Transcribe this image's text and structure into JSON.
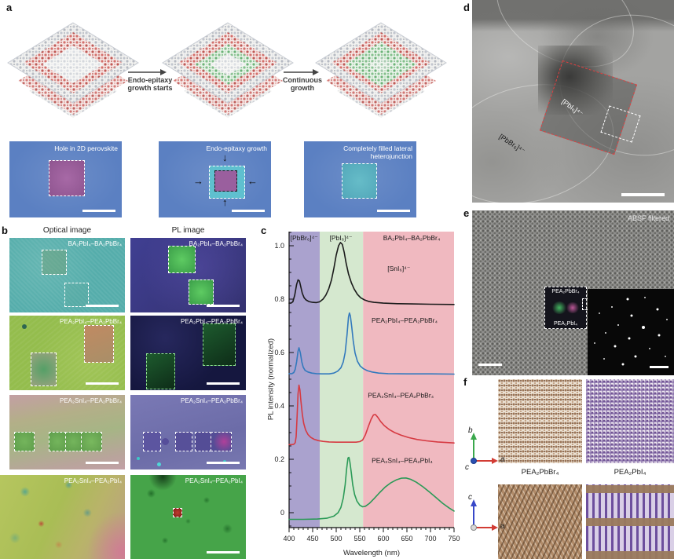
{
  "figure": {
    "panels": {
      "a": "a",
      "b": "b",
      "c": "c",
      "d": "d",
      "e": "e",
      "f": "f"
    }
  },
  "panel_a": {
    "step1_label": "Endo-epitaxy growth starts",
    "step2_label": "Continuous growth",
    "micrographs": [
      {
        "caption": "Hole in 2D perovskite"
      },
      {
        "caption": "Endo-epitaxy growth"
      },
      {
        "caption": "Completely filled lateral heterojunction"
      }
    ]
  },
  "panel_b": {
    "col_headers": [
      "Optical image",
      "PL image"
    ],
    "rows": [
      {
        "label": "BA₂PbI₄–BA₂PbBr₄"
      },
      {
        "label": "PEA₂PbI₄–PEA₂PbBr₄"
      },
      {
        "label": "PEA₂SnI₄–PEA₂PbBr₄"
      },
      {
        "label": "PEA₂SnI₄–PEA₂PbI₄"
      }
    ]
  },
  "chart_data": {
    "type": "line",
    "xlabel": "Wavelength (nm)",
    "ylabel": "PL intensity (normalized)",
    "xlim": [
      400,
      750
    ],
    "ylim": [
      -0.056,
      1.053
    ],
    "xticks": [
      400,
      450,
      500,
      550,
      600,
      650,
      700,
      750
    ],
    "yticks": [
      0,
      0.2,
      0.4,
      0.6,
      0.8,
      1.0
    ],
    "grid": false,
    "regions": [
      {
        "label": "[PbBr₆]⁴⁻",
        "from": 400,
        "to": 465,
        "color": "#aaa2ce"
      },
      {
        "label": "[PbI₆]⁴⁻",
        "from": 465,
        "to": 557,
        "color": "#d5e8cf"
      },
      {
        "label": "[SnI₆]⁴⁻",
        "from": 557,
        "to": 750,
        "color": "#f0b9c0"
      }
    ],
    "series": [
      {
        "name": "BA₂PbI₄–BA₂PbBr₄",
        "color": "#1a1a1a",
        "points": [
          [
            400,
            0.785
          ],
          [
            404,
            0.785
          ],
          [
            408,
            0.79
          ],
          [
            412,
            0.815
          ],
          [
            416,
            0.855
          ],
          [
            419,
            0.872
          ],
          [
            422,
            0.868
          ],
          [
            425,
            0.845
          ],
          [
            428,
            0.822
          ],
          [
            432,
            0.805
          ],
          [
            436,
            0.797
          ],
          [
            442,
            0.791
          ],
          [
            450,
            0.788
          ],
          [
            458,
            0.787
          ],
          [
            465,
            0.79
          ],
          [
            472,
            0.8
          ],
          [
            478,
            0.815
          ],
          [
            484,
            0.838
          ],
          [
            490,
            0.872
          ],
          [
            495,
            0.915
          ],
          [
            500,
            0.965
          ],
          [
            505,
            1.0
          ],
          [
            509,
            1.012
          ],
          [
            513,
            1.005
          ],
          [
            517,
            0.975
          ],
          [
            521,
            0.935
          ],
          [
            526,
            0.895
          ],
          [
            532,
            0.862
          ],
          [
            538,
            0.838
          ],
          [
            545,
            0.818
          ],
          [
            552,
            0.805
          ],
          [
            560,
            0.797
          ],
          [
            570,
            0.791
          ],
          [
            580,
            0.788
          ],
          [
            600,
            0.785
          ],
          [
            630,
            0.783
          ],
          [
            660,
            0.782
          ],
          [
            700,
            0.781
          ],
          [
            750,
            0.78
          ]
        ]
      },
      {
        "name": "PEA₂PbI₄–PEA₂PbBr₄",
        "color": "#3279bd",
        "points": [
          [
            400,
            0.521
          ],
          [
            406,
            0.521
          ],
          [
            410,
            0.525
          ],
          [
            413,
            0.537
          ],
          [
            416,
            0.565
          ],
          [
            419,
            0.605
          ],
          [
            421,
            0.618
          ],
          [
            424,
            0.598
          ],
          [
            427,
            0.565
          ],
          [
            430,
            0.545
          ],
          [
            434,
            0.533
          ],
          [
            440,
            0.527
          ],
          [
            448,
            0.523
          ],
          [
            458,
            0.521
          ],
          [
            470,
            0.52
          ],
          [
            485,
            0.52
          ],
          [
            495,
            0.523
          ],
          [
            503,
            0.53
          ],
          [
            510,
            0.543
          ],
          [
            515,
            0.565
          ],
          [
            519,
            0.6
          ],
          [
            523,
            0.668
          ],
          [
            526,
            0.732
          ],
          [
            528,
            0.748
          ],
          [
            530,
            0.738
          ],
          [
            533,
            0.695
          ],
          [
            536,
            0.645
          ],
          [
            540,
            0.598
          ],
          [
            545,
            0.567
          ],
          [
            551,
            0.549
          ],
          [
            558,
            0.539
          ],
          [
            566,
            0.532
          ],
          [
            576,
            0.527
          ],
          [
            590,
            0.523
          ],
          [
            610,
            0.521
          ],
          [
            650,
            0.52
          ],
          [
            700,
            0.52
          ],
          [
            750,
            0.519
          ]
        ]
      },
      {
        "name": "PEA₂SnI₄–PEA₂PbBr₄",
        "color": "#d63a42",
        "points": [
          [
            400,
            0.255
          ],
          [
            406,
            0.255
          ],
          [
            410,
            0.256
          ],
          [
            413,
            0.262
          ],
          [
            415,
            0.285
          ],
          [
            417,
            0.36
          ],
          [
            419,
            0.445
          ],
          [
            421,
            0.478
          ],
          [
            423,
            0.46
          ],
          [
            425,
            0.42
          ],
          [
            428,
            0.37
          ],
          [
            431,
            0.335
          ],
          [
            435,
            0.31
          ],
          [
            440,
            0.293
          ],
          [
            446,
            0.282
          ],
          [
            453,
            0.275
          ],
          [
            462,
            0.27
          ],
          [
            472,
            0.267
          ],
          [
            485,
            0.265
          ],
          [
            500,
            0.264
          ],
          [
            515,
            0.264
          ],
          [
            530,
            0.264
          ],
          [
            542,
            0.264
          ],
          [
            550,
            0.266
          ],
          [
            556,
            0.272
          ],
          [
            562,
            0.292
          ],
          [
            568,
            0.322
          ],
          [
            574,
            0.35
          ],
          [
            579,
            0.366
          ],
          [
            583,
            0.368
          ],
          [
            588,
            0.358
          ],
          [
            594,
            0.342
          ],
          [
            602,
            0.326
          ],
          [
            612,
            0.312
          ],
          [
            624,
            0.3
          ],
          [
            638,
            0.29
          ],
          [
            654,
            0.281
          ],
          [
            672,
            0.274
          ],
          [
            692,
            0.269
          ],
          [
            715,
            0.265
          ],
          [
            750,
            0.261
          ]
        ]
      },
      {
        "name": "PEA₂SnI₄–PEA₂PbI₄",
        "color": "#2b9a57",
        "points": [
          [
            400,
            -0.025
          ],
          [
            430,
            -0.025
          ],
          [
            460,
            -0.024
          ],
          [
            480,
            -0.021
          ],
          [
            495,
            -0.013
          ],
          [
            504,
            0.0
          ],
          [
            510,
            0.02
          ],
          [
            515,
            0.055
          ],
          [
            519,
            0.105
          ],
          [
            522,
            0.163
          ],
          [
            525,
            0.205
          ],
          [
            527,
            0.207
          ],
          [
            529,
            0.19
          ],
          [
            532,
            0.15
          ],
          [
            535,
            0.105
          ],
          [
            539,
            0.068
          ],
          [
            544,
            0.043
          ],
          [
            550,
            0.028
          ],
          [
            556,
            0.022
          ],
          [
            562,
            0.024
          ],
          [
            570,
            0.034
          ],
          [
            580,
            0.052
          ],
          [
            592,
            0.075
          ],
          [
            604,
            0.096
          ],
          [
            616,
            0.112
          ],
          [
            628,
            0.123
          ],
          [
            638,
            0.129
          ],
          [
            648,
            0.13
          ],
          [
            658,
            0.125
          ],
          [
            670,
            0.114
          ],
          [
            684,
            0.097
          ],
          [
            698,
            0.077
          ],
          [
            712,
            0.056
          ],
          [
            726,
            0.035
          ],
          [
            740,
            0.017
          ],
          [
            750,
            0.006
          ]
        ]
      }
    ],
    "annotations": [
      {
        "text": "[PbBr₆]⁴⁻",
        "x": 432,
        "y": 1.03
      },
      {
        "text": "[PbI₆]⁴⁻",
        "x": 510,
        "y": 1.03
      },
      {
        "text": "BA₂PbI₄–BA₂PbBr₄",
        "x": 660,
        "y": 1.03
      },
      {
        "text": "[SnI₆]⁴⁻",
        "x": 633,
        "y": 0.915
      },
      {
        "text": "PEA₂PbI₄–PEA₂PbBr₄",
        "x": 645,
        "y": 0.72
      },
      {
        "text": "PEA₂SnI₄–PEA₂PbBr₄",
        "x": 637,
        "y": 0.44
      },
      {
        "text": "PEA₂SnI₄–PEA₂PbI₄",
        "x": 640,
        "y": 0.195
      }
    ]
  },
  "panel_d": {
    "region_inner_label": "[PbI₆]⁴⁻",
    "region_outer_label": "[PbBr₆]⁴⁻"
  },
  "panel_e": {
    "filter_label": "ABSF filtered",
    "inset_top_label": "PEA₂PbBr₄",
    "inset_bottom_label": "PEA₂PbI₄"
  },
  "panel_f": {
    "structure_labels": [
      "PEA₂PbBr₄",
      "PEA₂PbI₄"
    ],
    "axes_top": {
      "up": "b",
      "right": "a",
      "origin": "c"
    },
    "axes_bottom": {
      "up": "c",
      "right": "a"
    }
  }
}
